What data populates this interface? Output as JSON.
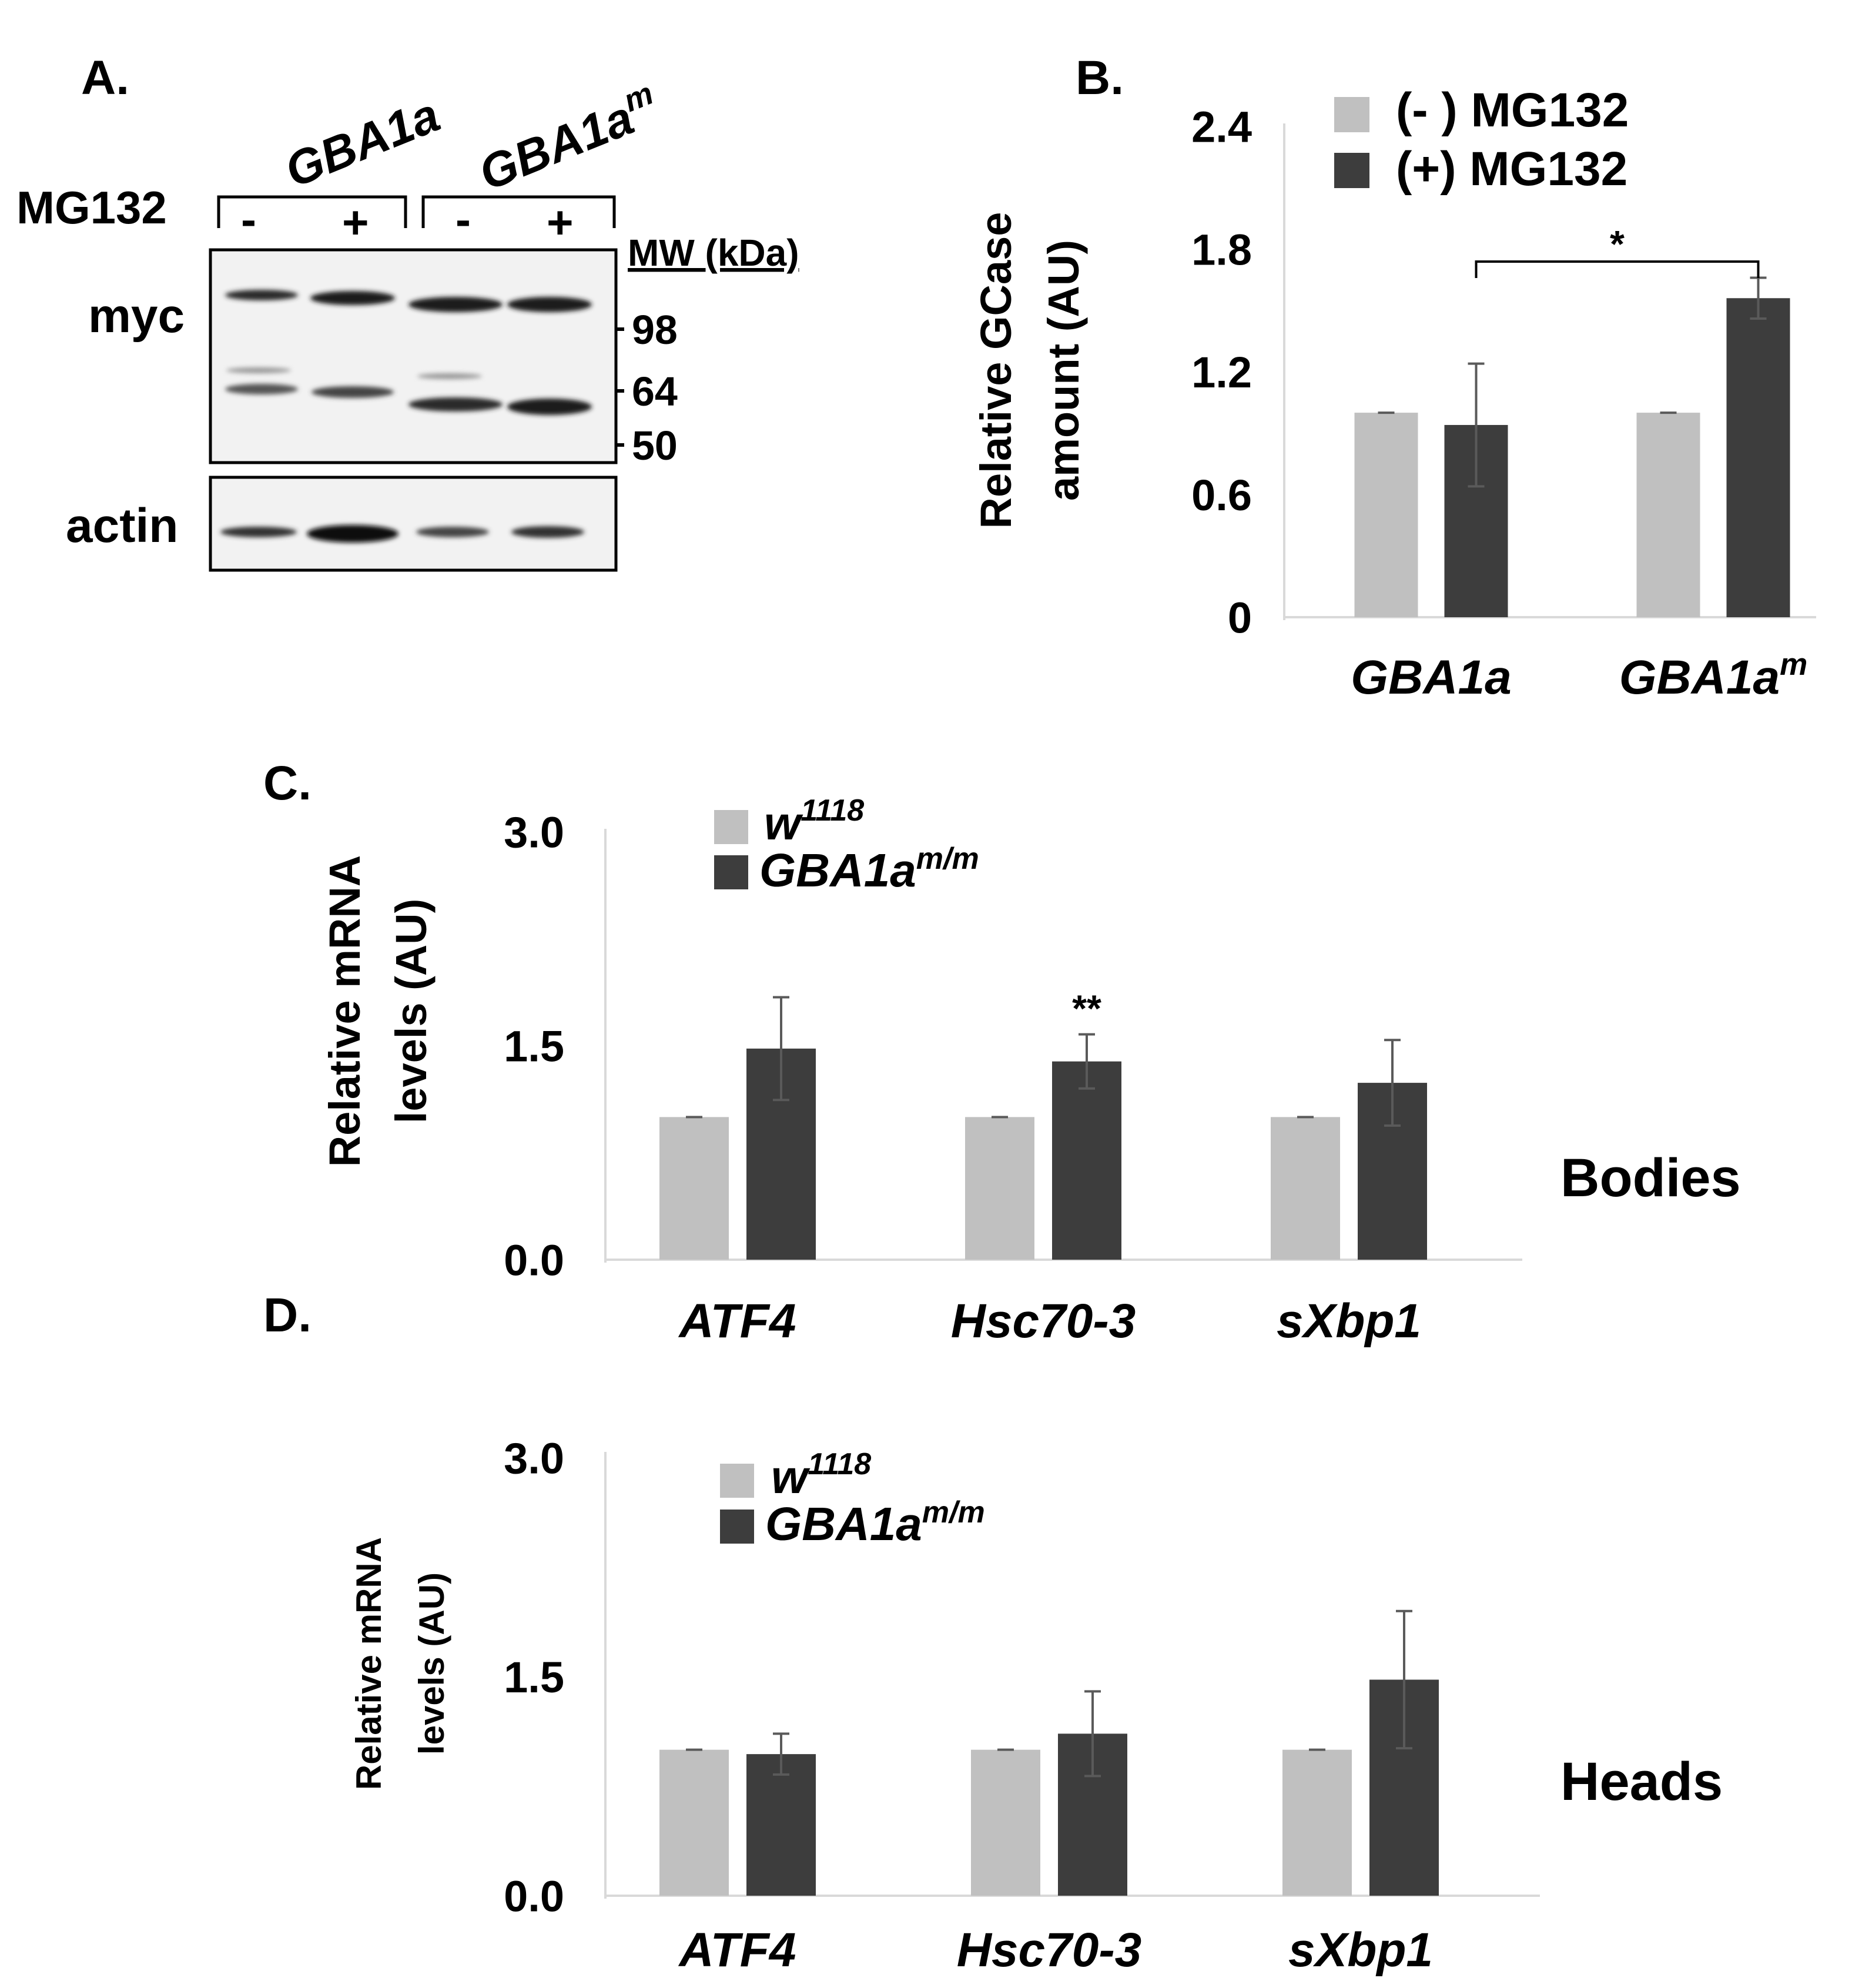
{
  "colors": {
    "light": "#c0c0c0",
    "dark": "#3d3d3d",
    "error": "#5a5a5a",
    "axis": "#d9d9d9",
    "ink": "#000000"
  },
  "panel_a": {
    "label": "A.",
    "groups": [
      "GBA1a",
      "GBA1a",
      "m"
    ],
    "treatment_label": "MG132",
    "signs": [
      "-",
      "+",
      "-",
      "+"
    ],
    "mw_header": "MW (kDa)",
    "mw_markers": [
      "98",
      "64",
      "50"
    ],
    "row_labels": [
      "myc",
      "actin"
    ]
  },
  "chart_data": [
    {
      "panel": "B.",
      "type": "bar",
      "categories": [
        {
          "text": "GBA1a",
          "sup": ""
        },
        {
          "text": "GBA1a",
          "sup": "m"
        }
      ],
      "series": [
        {
          "name": "(- ) MG132",
          "color": "#c0c0c0",
          "values": [
            1.0,
            1.0
          ],
          "errors": [
            0.0,
            0.0
          ]
        },
        {
          "name": "(+) MG132",
          "color": "#3d3d3d",
          "values": [
            0.94,
            1.56
          ],
          "errors": [
            0.3,
            0.1
          ]
        }
      ],
      "ylabel": [
        "Relative GCase",
        "amount (AU)"
      ],
      "ylim": [
        0,
        2.4
      ],
      "yticks": [
        "0",
        "0.6",
        "1.2",
        "1.8",
        "2.4"
      ],
      "legend": "top",
      "annotations": [
        {
          "text": "*",
          "from_category": 0,
          "to_category": 1
        }
      ]
    },
    {
      "panel": "C.",
      "type": "bar",
      "categories": [
        {
          "text": "ATF4",
          "sup": ""
        },
        {
          "text": "Hsc70-3",
          "sup": ""
        },
        {
          "text": "sXbp1",
          "sup": ""
        }
      ],
      "series": [
        {
          "name": "w",
          "name_sup": "1118",
          "color": "#c0c0c0",
          "values": [
            1.0,
            1.0,
            1.0
          ],
          "errors": [
            0.0,
            0.0,
            0.0
          ]
        },
        {
          "name": "GBA1a",
          "name_sup": "m/m",
          "color": "#3d3d3d",
          "values": [
            1.48,
            1.39,
            1.24
          ],
          "errors": [
            0.36,
            0.19,
            0.3
          ]
        }
      ],
      "ylabel": [
        "Relative mRNA",
        "levels (AU)"
      ],
      "ylim": [
        0,
        3.0
      ],
      "yticks": [
        "0.0",
        "1.5",
        "3.0"
      ],
      "legend": "top",
      "annotations": [
        {
          "text": "**",
          "category": 1
        }
      ],
      "side_label": "Bodies"
    },
    {
      "panel": "D.",
      "type": "bar",
      "categories": [
        {
          "text": "ATF4",
          "sup": ""
        },
        {
          "text": "Hsc70-3",
          "sup": ""
        },
        {
          "text": "sXbp1",
          "sup": ""
        }
      ],
      "series": [
        {
          "name": "w",
          "name_sup": "1118",
          "color": "#c0c0c0",
          "values": [
            1.0,
            1.0,
            1.0
          ],
          "errors": [
            0.0,
            0.0,
            0.0
          ]
        },
        {
          "name": "GBA1a",
          "name_sup": "m/m",
          "color": "#3d3d3d",
          "values": [
            0.97,
            1.11,
            1.48
          ],
          "errors": [
            0.14,
            0.29,
            0.47
          ]
        }
      ],
      "ylabel": [
        "Relative mRNA",
        "levels (AU)"
      ],
      "ylim": [
        0,
        3.0
      ],
      "yticks": [
        "0.0",
        "1.5",
        "3.0"
      ],
      "legend": "top",
      "annotations": [],
      "side_label": "Heads"
    }
  ]
}
